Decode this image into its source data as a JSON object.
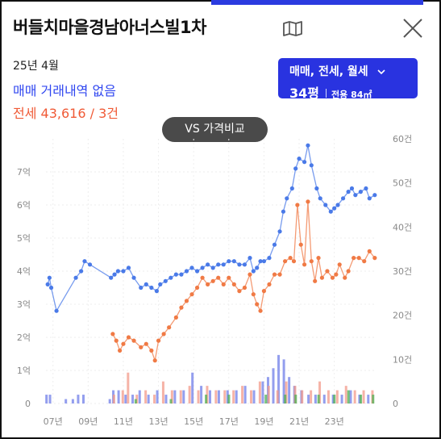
{
  "header": {
    "title": "버들치마을경남아너스빌1차",
    "map_icon": "map-icon",
    "close_icon": "close-icon"
  },
  "summary": {
    "date": "25년 4월",
    "sale_text": "매매 거래내역 없음",
    "jeonse_text": "전세 43,616 / 3건"
  },
  "filter": {
    "types": "매매, 전세, 월세",
    "size": "34평",
    "area": "전용 84㎡"
  },
  "vs_button": "VS 가격비교",
  "colors": {
    "sale": "#4a7ae8",
    "jeonse": "#f07a45",
    "accent": "#2933e0",
    "vol_sale": "#6f7de8",
    "vol_jeonse": "#f39a8a",
    "vol_monthly": "#4caf50"
  },
  "chart_data": {
    "type": "line",
    "x_ticks": [
      "07년",
      "09년",
      "11년",
      "13년",
      "15년",
      "17년",
      "19년",
      "21년",
      "23년"
    ],
    "x_range": [
      2006.6,
      2025.4
    ],
    "y_left": {
      "ticks": [
        "0",
        "1억",
        "2억",
        "3억",
        "4억",
        "5억",
        "6억",
        "7억"
      ],
      "range": [
        0,
        8
      ]
    },
    "y_right": {
      "ticks": [
        "0",
        "10건",
        "20건",
        "30건",
        "40건",
        "50건",
        "60건"
      ],
      "range": [
        0,
        60
      ]
    },
    "grid": true,
    "series": [
      {
        "name": "매매",
        "points": [
          [
            2006.7,
            3.6
          ],
          [
            2006.8,
            3.8
          ],
          [
            2006.9,
            3.5
          ],
          [
            2007.2,
            2.8
          ],
          [
            2008.3,
            3.8
          ],
          [
            2008.6,
            4.0
          ],
          [
            2008.8,
            4.3
          ],
          [
            2009.1,
            4.2
          ],
          [
            2010.3,
            3.8
          ],
          [
            2010.5,
            3.9
          ],
          [
            2010.7,
            4.0
          ],
          [
            2011.0,
            4.0
          ],
          [
            2011.3,
            4.1
          ],
          [
            2011.6,
            3.8
          ],
          [
            2012.0,
            3.5
          ],
          [
            2012.3,
            3.6
          ],
          [
            2012.6,
            3.5
          ],
          [
            2012.9,
            3.4
          ],
          [
            2013.1,
            3.6
          ],
          [
            2013.4,
            3.7
          ],
          [
            2013.7,
            3.8
          ],
          [
            2014.0,
            3.9
          ],
          [
            2014.3,
            3.9
          ],
          [
            2014.6,
            4.0
          ],
          [
            2014.9,
            4.1
          ],
          [
            2015.2,
            4.0
          ],
          [
            2015.5,
            4.1
          ],
          [
            2015.8,
            4.2
          ],
          [
            2016.1,
            4.1
          ],
          [
            2016.4,
            4.2
          ],
          [
            2016.7,
            4.2
          ],
          [
            2017.0,
            4.3
          ],
          [
            2017.3,
            4.3
          ],
          [
            2017.6,
            4.2
          ],
          [
            2017.9,
            4.2
          ],
          [
            2018.2,
            4.4
          ],
          [
            2018.4,
            4.0
          ],
          [
            2018.6,
            4.1
          ],
          [
            2018.8,
            4.3
          ],
          [
            2019.0,
            4.3
          ],
          [
            2019.3,
            4.4
          ],
          [
            2019.6,
            4.8
          ],
          [
            2019.9,
            5.2
          ],
          [
            2020.1,
            5.8
          ],
          [
            2020.3,
            6.2
          ],
          [
            2020.6,
            6.5
          ],
          [
            2020.8,
            7.1
          ],
          [
            2021.0,
            7.4
          ],
          [
            2021.3,
            7.3
          ],
          [
            2021.5,
            7.8
          ],
          [
            2021.7,
            7.2
          ],
          [
            2022.0,
            6.5
          ],
          [
            2022.2,
            6.2
          ],
          [
            2022.5,
            6.0
          ],
          [
            2022.8,
            5.8
          ],
          [
            2023.0,
            5.9
          ],
          [
            2023.2,
            6.0
          ],
          [
            2023.5,
            6.2
          ],
          [
            2023.8,
            6.4
          ],
          [
            2024.0,
            6.5
          ],
          [
            2024.2,
            6.3
          ],
          [
            2024.5,
            6.4
          ],
          [
            2024.8,
            6.5
          ],
          [
            2025.0,
            6.2
          ],
          [
            2025.3,
            6.3
          ]
        ]
      },
      {
        "name": "전세",
        "points": [
          [
            2010.4,
            2.1
          ],
          [
            2010.6,
            1.9
          ],
          [
            2010.8,
            1.6
          ],
          [
            2011.0,
            1.8
          ],
          [
            2011.3,
            2.0
          ],
          [
            2011.6,
            1.9
          ],
          [
            2012.0,
            1.7
          ],
          [
            2012.3,
            1.8
          ],
          [
            2012.6,
            1.6
          ],
          [
            2012.8,
            1.3
          ],
          [
            2013.0,
            1.9
          ],
          [
            2013.3,
            2.1
          ],
          [
            2013.6,
            2.3
          ],
          [
            2014.0,
            2.6
          ],
          [
            2014.3,
            2.9
          ],
          [
            2014.6,
            3.1
          ],
          [
            2014.9,
            3.3
          ],
          [
            2015.2,
            3.5
          ],
          [
            2015.5,
            3.8
          ],
          [
            2015.8,
            3.6
          ],
          [
            2016.1,
            3.7
          ],
          [
            2016.4,
            3.8
          ],
          [
            2016.7,
            3.6
          ],
          [
            2017.0,
            3.8
          ],
          [
            2017.3,
            3.6
          ],
          [
            2017.6,
            3.4
          ],
          [
            2017.9,
            3.5
          ],
          [
            2018.2,
            3.9
          ],
          [
            2018.4,
            3.3
          ],
          [
            2018.6,
            3.0
          ],
          [
            2018.8,
            2.8
          ],
          [
            2019.0,
            3.4
          ],
          [
            2019.3,
            3.6
          ],
          [
            2019.6,
            3.9
          ],
          [
            2019.9,
            3.9
          ],
          [
            2020.2,
            4.3
          ],
          [
            2020.5,
            4.4
          ],
          [
            2020.7,
            4.3
          ],
          [
            2020.9,
            6.0
          ],
          [
            2021.1,
            4.8
          ],
          [
            2021.3,
            4.2
          ],
          [
            2021.5,
            6.1
          ],
          [
            2021.7,
            4.3
          ],
          [
            2021.9,
            3.7
          ],
          [
            2022.1,
            4.4
          ],
          [
            2022.3,
            3.8
          ],
          [
            2022.6,
            4.0
          ],
          [
            2022.9,
            3.8
          ],
          [
            2023.1,
            3.9
          ],
          [
            2023.3,
            4.2
          ],
          [
            2023.6,
            3.8
          ],
          [
            2023.8,
            4.0
          ],
          [
            2024.1,
            4.4
          ],
          [
            2024.4,
            4.4
          ],
          [
            2024.7,
            4.3
          ],
          [
            2025.0,
            4.6
          ],
          [
            2025.3,
            4.4
          ]
        ]
      }
    ],
    "volume": {
      "sale": [
        [
          2006.7,
          2
        ],
        [
          2006.9,
          2
        ],
        [
          2007.8,
          1
        ],
        [
          2008.2,
          1
        ],
        [
          2008.5,
          2
        ],
        [
          2008.8,
          2
        ],
        [
          2010.3,
          1
        ],
        [
          2010.5,
          3
        ],
        [
          2010.8,
          3
        ],
        [
          2011.2,
          2
        ],
        [
          2011.6,
          2
        ],
        [
          2012.0,
          3
        ],
        [
          2012.5,
          2
        ],
        [
          2013.0,
          3
        ],
        [
          2013.5,
          2
        ],
        [
          2014.0,
          3
        ],
        [
          2014.5,
          3
        ],
        [
          2015.0,
          7
        ],
        [
          2015.5,
          4
        ],
        [
          2016.0,
          3
        ],
        [
          2016.5,
          3
        ],
        [
          2017.0,
          3
        ],
        [
          2017.5,
          3
        ],
        [
          2018.0,
          4
        ],
        [
          2018.5,
          3
        ],
        [
          2019.0,
          5
        ],
        [
          2019.3,
          6
        ],
        [
          2019.6,
          8
        ],
        [
          2019.9,
          11
        ],
        [
          2020.2,
          10
        ],
        [
          2020.5,
          6
        ],
        [
          2020.8,
          4
        ],
        [
          2021.2,
          3
        ],
        [
          2021.6,
          2
        ],
        [
          2022.0,
          2
        ],
        [
          2022.5,
          2
        ],
        [
          2023.0,
          2
        ],
        [
          2023.5,
          2
        ],
        [
          2024.0,
          3
        ],
        [
          2024.5,
          2
        ],
        [
          2025.0,
          2
        ]
      ],
      "jeonse": [
        [
          2010.4,
          2
        ],
        [
          2010.9,
          3
        ],
        [
          2011.2,
          7
        ],
        [
          2011.7,
          2
        ],
        [
          2012.2,
          3
        ],
        [
          2012.7,
          2
        ],
        [
          2013.2,
          5
        ],
        [
          2013.7,
          3
        ],
        [
          2014.2,
          3
        ],
        [
          2014.7,
          4
        ],
        [
          2015.2,
          3
        ],
        [
          2015.7,
          4
        ],
        [
          2016.2,
          3
        ],
        [
          2016.7,
          3
        ],
        [
          2017.2,
          3
        ],
        [
          2017.7,
          4
        ],
        [
          2018.2,
          3
        ],
        [
          2018.7,
          5
        ],
        [
          2019.2,
          4
        ],
        [
          2019.7,
          3
        ],
        [
          2020.2,
          5
        ],
        [
          2020.7,
          4
        ],
        [
          2021.1,
          3
        ],
        [
          2021.6,
          3
        ],
        [
          2022.1,
          5
        ],
        [
          2022.6,
          3
        ],
        [
          2023.1,
          3
        ],
        [
          2023.6,
          4
        ],
        [
          2024.1,
          3
        ],
        [
          2024.6,
          3
        ],
        [
          2025.1,
          3
        ]
      ],
      "monthly": [
        [
          2011.5,
          1
        ],
        [
          2013.5,
          1
        ],
        [
          2015.5,
          2
        ],
        [
          2016.8,
          2
        ],
        [
          2018.9,
          2
        ],
        [
          2020.0,
          2
        ],
        [
          2020.6,
          2
        ],
        [
          2021.9,
          2
        ],
        [
          2022.8,
          2
        ],
        [
          2023.6,
          3
        ],
        [
          2024.3,
          2
        ],
        [
          2025.0,
          2
        ]
      ]
    }
  }
}
